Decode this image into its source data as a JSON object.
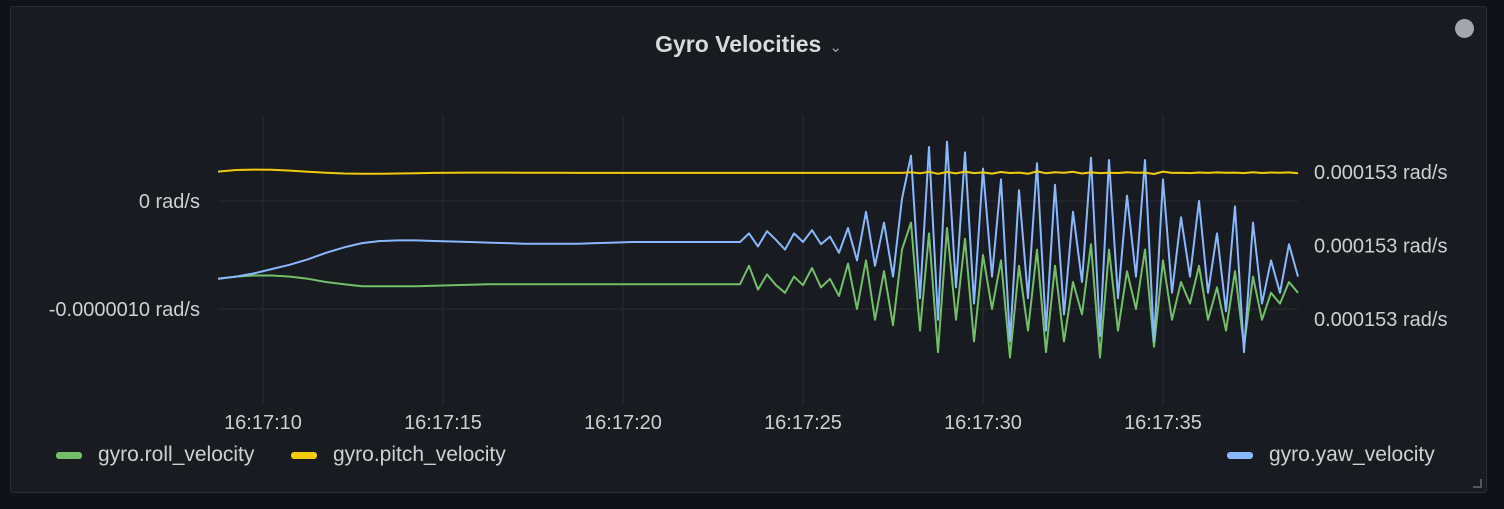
{
  "panel": {
    "title": "Gyro Velocities",
    "menu_icon": "chevron-down-icon",
    "status_icon": "circle-icon"
  },
  "chart_data": {
    "type": "line",
    "title": "Gyro Velocities",
    "grid": true,
    "legend_placement": "bottom",
    "x_ticks": [
      "16:17:10",
      "16:17:15",
      "16:17:20",
      "16:17:25",
      "16:17:30",
      "16:17:35"
    ],
    "y_left": {
      "ticks": [
        0,
        -1e-06
      ],
      "tick_labels": [
        "0 rad/s",
        "-0.0000010 rad/s"
      ],
      "unit": "rad/s"
    },
    "y_right": {
      "ticks": [
        0.0001531,
        0.000153,
        0.0001529
      ],
      "tick_labels": [
        "0.000153 rad/s",
        "0.000153 rad/s",
        "0.000153 rad/s"
      ],
      "unit": "rad/s"
    },
    "x": [
      "16:17:08.75",
      "16:17:09.25",
      "16:17:09.75",
      "16:17:10.25",
      "16:17:10.75",
      "16:17:11.25",
      "16:17:11.75",
      "16:17:12.25",
      "16:17:12.75",
      "16:17:13.25",
      "16:17:13.75",
      "16:17:14.25",
      "16:17:14.75",
      "16:17:15.25",
      "16:17:15.75",
      "16:17:16.25",
      "16:17:16.75",
      "16:17:17.25",
      "16:17:17.75",
      "16:17:18.25",
      "16:17:18.75",
      "16:17:19.25",
      "16:17:19.75",
      "16:17:20.25",
      "16:17:20.75",
      "16:17:21.25",
      "16:17:21.75",
      "16:17:22.25",
      "16:17:22.75",
      "16:17:23.25",
      "16:17:23.50",
      "16:17:23.75",
      "16:17:24.00",
      "16:17:24.25",
      "16:17:24.50",
      "16:17:24.75",
      "16:17:25.00",
      "16:17:25.25",
      "16:17:25.50",
      "16:17:25.75",
      "16:17:26.00",
      "16:17:26.25",
      "16:17:26.50",
      "16:17:26.75",
      "16:17:27.00",
      "16:17:27.25",
      "16:17:27.50",
      "16:17:27.75",
      "16:17:28.00",
      "16:17:28.25",
      "16:17:28.50",
      "16:17:28.75",
      "16:17:29.00",
      "16:17:29.25",
      "16:17:29.50",
      "16:17:29.75",
      "16:17:30.00",
      "16:17:30.25",
      "16:17:30.50",
      "16:17:30.75",
      "16:17:31.00",
      "16:17:31.25",
      "16:17:31.50",
      "16:17:31.75",
      "16:17:32.00",
      "16:17:32.25",
      "16:17:32.50",
      "16:17:32.75",
      "16:17:33.00",
      "16:17:33.25",
      "16:17:33.50",
      "16:17:33.75",
      "16:17:34.00",
      "16:17:34.25",
      "16:17:34.50",
      "16:17:34.75",
      "16:17:35.00",
      "16:17:35.25",
      "16:17:35.50",
      "16:17:35.75",
      "16:17:36.00",
      "16:17:36.25",
      "16:17:36.50",
      "16:17:36.75",
      "16:17:37.00",
      "16:17:37.25",
      "16:17:37.50",
      "16:17:37.75",
      "16:17:38.00",
      "16:17:38.25",
      "16:17:38.50",
      "16:17:38.75"
    ],
    "series": [
      {
        "name": "gyro.roll_velocity",
        "color": "#73bf69",
        "axis": "left",
        "values": [
          -7.2e-07,
          -7e-07,
          -6.9e-07,
          -6.9e-07,
          -7e-07,
          -7.2e-07,
          -7.5e-07,
          -7.7e-07,
          -7.9e-07,
          -7.9e-07,
          -7.9e-07,
          -7.9e-07,
          -7.85e-07,
          -7.8e-07,
          -7.75e-07,
          -7.7e-07,
          -7.7e-07,
          -7.7e-07,
          -7.7e-07,
          -7.7e-07,
          -7.7e-07,
          -7.7e-07,
          -7.7e-07,
          -7.7e-07,
          -7.7e-07,
          -7.7e-07,
          -7.7e-07,
          -7.7e-07,
          -7.7e-07,
          -7.7e-07,
          -6e-07,
          -8.2e-07,
          -6.8e-07,
          -7.8e-07,
          -8.5e-07,
          -7e-07,
          -7.8e-07,
          -6.2e-07,
          -8e-07,
          -7.2e-07,
          -8.8e-07,
          -5.8e-07,
          -1e-06,
          -5.5e-07,
          -1.1e-06,
          -6.5e-07,
          -1.15e-06,
          -4.5e-07,
          -2e-07,
          -1.2e-06,
          -3e-07,
          -1.4e-06,
          -2.5e-07,
          -1.1e-06,
          -3.5e-07,
          -1.3e-06,
          -5e-07,
          -1e-06,
          -5.5e-07,
          -1.45e-06,
          -6e-07,
          -1.2e-06,
          -4.5e-07,
          -1.4e-06,
          -6e-07,
          -1.3e-06,
          -7.5e-07,
          -1.05e-06,
          -4e-07,
          -1.45e-06,
          -4.5e-07,
          -1.2e-06,
          -6.5e-07,
          -1e-06,
          -4.5e-07,
          -1.35e-06,
          -5.5e-07,
          -1.1e-06,
          -7.5e-07,
          -9.5e-07,
          -6e-07,
          -1.1e-06,
          -8e-07,
          -1.2e-06,
          -6.5e-07,
          -1.35e-06,
          -7e-07,
          -1.1e-06,
          -8.5e-07,
          -9.5e-07,
          -7.5e-07,
          -8.5e-07
        ]
      },
      {
        "name": "gyro.pitch_velocity",
        "color": "#f2cc0c",
        "axis": "right",
        "values": [
          0.00015310054,
          0.00015310272,
          0.00015310326,
          0.00015310299,
          0.0001531019,
          0.00015310027,
          0.00015309891,
          0.00015309796,
          0.00015309769,
          0.00015309769,
          0.00015309796,
          0.00015309837,
          0.00015309878,
          0.00015309905,
          0.00015309918,
          0.00015309918,
          0.00015309918,
          0.00015309905,
          0.00015309891,
          0.00015309891,
          0.00015309878,
          0.00015309878,
          0.00015309878,
          0.00015309878,
          0.00015309878,
          0.00015309878,
          0.00015309878,
          0.00015309878,
          0.00015309878,
          0.00015309878,
          0.00015309878,
          0.00015309878,
          0.00015309878,
          0.00015309878,
          0.00015309878,
          0.00015309878,
          0.00015309878,
          0.00015309878,
          0.00015309878,
          0.00015309878,
          0.00015309878,
          0.00015309878,
          0.00015309878,
          0.00015309878,
          0.00015309878,
          0.00015309878,
          0.00015309878,
          0.00015309878,
          0.00015309959,
          0.00015309823,
          0.00015310027,
          0.00015309755,
          0.0001531,
          0.0001530981,
          0.00015310054,
          0.0001530985,
          0.00015309946,
          0.00015309782,
          0.0001531,
          0.00015309864,
          0.00015309918,
          0.00015309755,
          0.00015310082,
          0.00015309837,
          0.00015309973,
          0.00015309891,
          0.00015310027,
          0.00015309796,
          0.00015309946,
          0.0001530985,
          0.00015309905,
          0.00015309864,
          0.00015309959,
          0.00015309891,
          0.00015309918,
          0.00015309728,
          0.00015310054,
          0.00015309878,
          0.00015309905,
          0.0001530985,
          0.00015309932,
          0.00015309878,
          0.00015309946,
          0.00015309891,
          0.00015309918,
          0.0001530985,
          0.00015309959,
          0.00015309864,
          0.00015309932,
          0.00015309891,
          0.00015309946,
          0.00015309823
        ]
      },
      {
        "name": "gyro.yaw_velocity",
        "color": "#8ab8ff",
        "axis": "left",
        "values": [
          -7.2e-07,
          -7e-07,
          -6.7e-07,
          -6.3e-07,
          -5.9e-07,
          -5.4e-07,
          -4.8e-07,
          -4.3e-07,
          -3.9e-07,
          -3.7e-07,
          -3.65e-07,
          -3.65e-07,
          -3.7e-07,
          -3.75e-07,
          -3.8e-07,
          -3.85e-07,
          -3.9e-07,
          -3.95e-07,
          -3.95e-07,
          -3.95e-07,
          -3.95e-07,
          -3.9e-07,
          -3.85e-07,
          -3.8e-07,
          -3.8e-07,
          -3.8e-07,
          -3.8e-07,
          -3.8e-07,
          -3.8e-07,
          -3.8e-07,
          -3e-07,
          -4.2e-07,
          -2.8e-07,
          -3.6e-07,
          -4.5e-07,
          -3e-07,
          -3.8e-07,
          -2.7e-07,
          -4e-07,
          -3.3e-07,
          -4.8e-07,
          -2.5e-07,
          -5.5e-07,
          -1e-07,
          -6e-07,
          -2e-07,
          -7e-07,
          2e-08,
          4.2e-07,
          -9e-07,
          5e-07,
          -1.1e-06,
          5.5e-07,
          -8e-07,
          4.5e-07,
          -9.5e-07,
          3e-07,
          -7e-07,
          2e-07,
          -1.3e-06,
          1e-07,
          -9e-07,
          3.5e-07,
          -1.2e-06,
          1.5e-07,
          -1.05e-06,
          -1e-07,
          -7.5e-07,
          4e-07,
          -1.25e-06,
          3.8e-07,
          -9e-07,
          5e-08,
          -7e-07,
          3.8e-07,
          -1.3e-06,
          2e-07,
          -8.5e-07,
          -1.5e-07,
          -7e-07,
          0.0,
          -8.5e-07,
          -3e-07,
          -1.02e-06,
          -5e-08,
          -1.4e-06,
          -2e-07,
          -9.5e-07,
          -5.5e-07,
          -8.5e-07,
          -4e-07,
          -7e-07
        ]
      }
    ]
  }
}
